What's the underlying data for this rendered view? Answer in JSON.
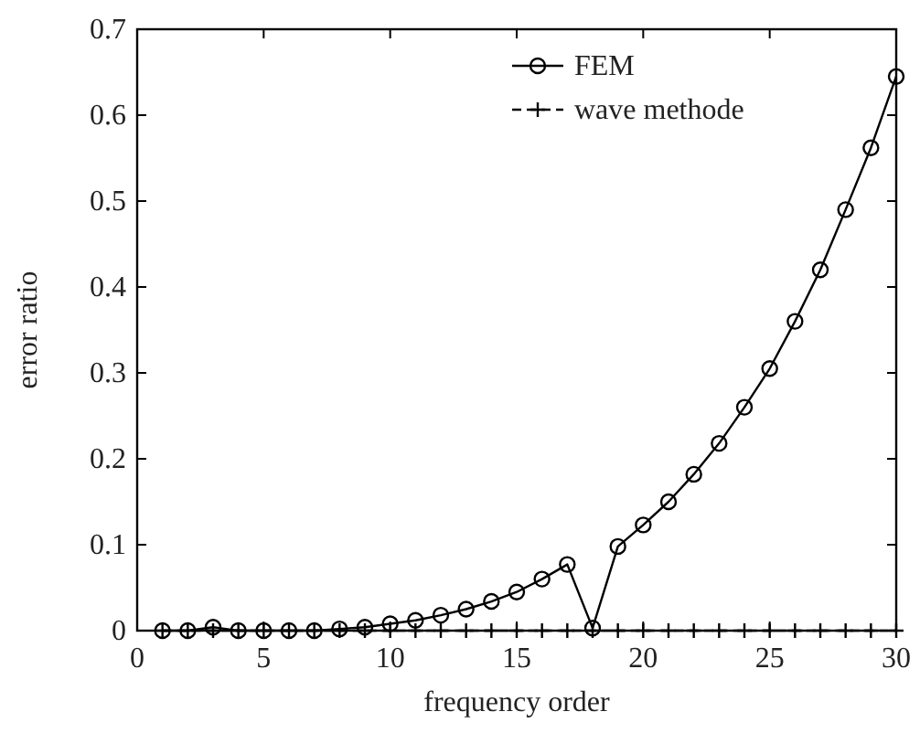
{
  "chart_data": {
    "type": "line",
    "xlabel": "frequency order",
    "ylabel": "error ratio",
    "x": [
      1,
      2,
      3,
      4,
      5,
      6,
      7,
      8,
      9,
      10,
      11,
      12,
      13,
      14,
      15,
      16,
      17,
      18,
      19,
      20,
      21,
      22,
      23,
      24,
      25,
      26,
      27,
      28,
      29,
      30
    ],
    "series": [
      {
        "name": "FEM",
        "color": "#000000",
        "marker": "circle",
        "line_style": "solid",
        "values": [
          0,
          0,
          0.004,
          0,
          0,
          0,
          0,
          0.002,
          0.004,
          0.008,
          0.012,
          0.018,
          0.025,
          0.034,
          0.045,
          0.06,
          0.077,
          0.003,
          0.098,
          0.123,
          0.15,
          0.182,
          0.218,
          0.26,
          0.305,
          0.36,
          0.42,
          0.49,
          0.562,
          0.645
        ]
      },
      {
        "name": "wave methode",
        "color": "#000000",
        "marker": "cross",
        "line_style": "dashed",
        "values": [
          0,
          0,
          0,
          0,
          0,
          0,
          0,
          0,
          0,
          0,
          0,
          0,
          0,
          0,
          0,
          0,
          0,
          0,
          0,
          0,
          0,
          0,
          0,
          0,
          0,
          0,
          0,
          0,
          0,
          0
        ]
      }
    ],
    "xlim": [
      0,
      30
    ],
    "xticks": [
      0,
      5,
      10,
      15,
      20,
      25,
      30
    ],
    "ylim": [
      0,
      0.7
    ],
    "yticks": [
      0,
      0.1,
      0.2,
      0.3,
      0.4,
      0.5,
      0.6,
      0.7
    ],
    "grid": false,
    "legend": "top right"
  }
}
